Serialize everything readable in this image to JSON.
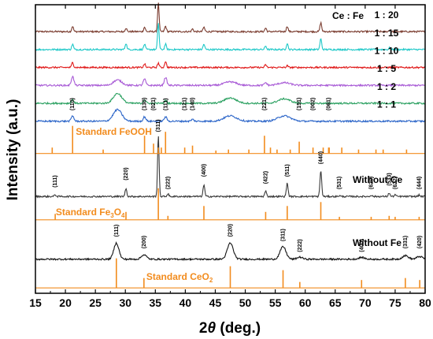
{
  "chart_data": {
    "type": "line",
    "xlabel_italic": "2",
    "xlabel_theta": "θ",
    "xlabel_rest": " (deg.)",
    "ylabel": "Intensity (a.u.)",
    "xlim": [
      15,
      80
    ],
    "x_ticks": [
      "15",
      "20",
      "25",
      "30",
      "35",
      "40",
      "45",
      "50",
      "55",
      "60",
      "65",
      "70",
      "75",
      "80"
    ],
    "legend_title": "Ce : Fe",
    "reference_color": "#f28c1e",
    "series": [
      {
        "name": "1 : 20",
        "color": "#7a3b2e",
        "base": 14.3,
        "amp": 0.85,
        "peaks": [
          [
            21.2,
            0.3,
            0.2
          ],
          [
            30.1,
            0.2,
            0.2
          ],
          [
            33.2,
            0.25,
            0.2
          ],
          [
            35.5,
            1.6,
            0.18
          ],
          [
            36.7,
            0.3,
            0.2
          ],
          [
            41.2,
            0.15,
            0.2
          ],
          [
            43.1,
            0.25,
            0.2
          ],
          [
            53.4,
            0.2,
            0.2
          ],
          [
            57.0,
            0.3,
            0.2
          ],
          [
            62.6,
            0.5,
            0.2
          ],
          [
            74.1,
            0.1,
            0.2
          ]
        ],
        "broad": []
      },
      {
        "name": "1 : 15",
        "color": "#1ec8c8",
        "base": 13.3,
        "amp": 0.85,
        "peaks": [
          [
            21.2,
            0.3,
            0.2
          ],
          [
            30.1,
            0.35,
            0.2
          ],
          [
            33.2,
            0.3,
            0.2
          ],
          [
            35.5,
            1.5,
            0.18
          ],
          [
            36.7,
            0.3,
            0.2
          ],
          [
            43.1,
            0.3,
            0.2
          ],
          [
            53.4,
            0.2,
            0.2
          ],
          [
            57.0,
            0.35,
            0.2
          ],
          [
            62.6,
            0.6,
            0.2
          ],
          [
            74.1,
            0.1,
            0.2
          ]
        ],
        "broad": []
      },
      {
        "name": "1 : 10",
        "color": "#e01818",
        "base": 12.3,
        "amp": 0.85,
        "peaks": [
          [
            21.2,
            0.3,
            0.2
          ],
          [
            33.2,
            0.2,
            0.2
          ],
          [
            35.5,
            0.25,
            0.2
          ],
          [
            36.7,
            0.35,
            0.2
          ],
          [
            53.4,
            0.15,
            0.2
          ],
          [
            57.0,
            0.1,
            0.2
          ]
        ],
        "broad": []
      },
      {
        "name": "1 : 5",
        "color": "#a85ad6",
        "base": 11.3,
        "amp": 0.85,
        "peaks": [
          [
            21.2,
            0.5,
            0.3
          ],
          [
            33.2,
            0.35,
            0.3
          ],
          [
            36.7,
            0.45,
            0.3
          ],
          [
            53.4,
            0.15,
            0.3
          ]
        ],
        "broad": [
          [
            28.7,
            0.3,
            1.0
          ],
          [
            47.5,
            0.2,
            1.4
          ],
          [
            56.5,
            0.15,
            1.4
          ]
        ]
      },
      {
        "name": "1 : 2",
        "color": "#2aa060",
        "base": 10.3,
        "amp": 0.85,
        "peaks": [
          [
            21.2,
            0.2,
            0.3
          ],
          [
            33.2,
            0.2,
            0.3
          ],
          [
            36.7,
            0.15,
            0.3
          ]
        ],
        "broad": [
          [
            28.7,
            0.55,
            1.0
          ],
          [
            47.5,
            0.3,
            1.4
          ],
          [
            56.5,
            0.25,
            1.4
          ]
        ]
      },
      {
        "name": "1 : 1",
        "color": "#2a64c8",
        "base": 9.3,
        "amp": 0.85,
        "peaks": [
          [
            21.2,
            0.3,
            0.3
          ],
          [
            33.2,
            0.25,
            0.3
          ],
          [
            36.7,
            0.25,
            0.3
          ],
          [
            41.2,
            0.1,
            0.3
          ]
        ],
        "broad": [
          [
            28.7,
            0.65,
            1.0
          ],
          [
            47.5,
            0.3,
            1.5
          ],
          [
            56.5,
            0.3,
            1.5
          ]
        ]
      },
      {
        "name": "Without Ce",
        "color": "#3a3a3a",
        "base": 5.1,
        "amp": 0.85,
        "peaks": [
          [
            18.3,
            0.1,
            0.2
          ],
          [
            30.1,
            0.45,
            0.2
          ],
          [
            35.5,
            3.4,
            0.18
          ],
          [
            37.1,
            0.15,
            0.2
          ],
          [
            43.1,
            0.65,
            0.2
          ],
          [
            53.4,
            0.3,
            0.2
          ],
          [
            57.0,
            0.75,
            0.2
          ],
          [
            62.6,
            1.45,
            0.2
          ],
          [
            65.7,
            0.05,
            0.2
          ],
          [
            71.0,
            0.08,
            0.2
          ],
          [
            74.0,
            0.2,
            0.2
          ],
          [
            75.0,
            0.1,
            0.2
          ],
          [
            79.0,
            0.08,
            0.2
          ]
        ],
        "broad": []
      },
      {
        "name": "Without Fe",
        "color": "#111111",
        "base": 1.6,
        "amp": 0.85,
        "peaks": [],
        "broad": [
          [
            28.5,
            0.9,
            0.6
          ],
          [
            33.1,
            0.25,
            0.6
          ],
          [
            47.5,
            0.9,
            0.7
          ],
          [
            56.3,
            0.7,
            0.7
          ],
          [
            59.1,
            0.12,
            0.6
          ],
          [
            69.4,
            0.1,
            0.7
          ],
          [
            76.7,
            0.2,
            0.7
          ],
          [
            79.1,
            0.15,
            0.7
          ]
        ]
      }
    ],
    "references": [
      {
        "name_main": "Standard FeOOH",
        "name_sub": "",
        "name_tail": "",
        "base": 7.5,
        "lines": [
          [
            17.8,
            0.3
          ],
          [
            21.2,
            1.4
          ],
          [
            26.3,
            0.2
          ],
          [
            33.2,
            0.9
          ],
          [
            34.7,
            0.5
          ],
          [
            35.5,
            0.3
          ],
          [
            36.0,
            0.3
          ],
          [
            36.7,
            1.1
          ],
          [
            39.9,
            0.3
          ],
          [
            41.2,
            0.4
          ],
          [
            45.1,
            0.15
          ],
          [
            47.2,
            0.2
          ],
          [
            50.6,
            0.2
          ],
          [
            53.2,
            0.9
          ],
          [
            54.2,
            0.3
          ],
          [
            55.3,
            0.2
          ],
          [
            57.5,
            0.2
          ],
          [
            59.0,
            0.6
          ],
          [
            61.3,
            0.3
          ],
          [
            63.0,
            0.3
          ],
          [
            63.9,
            0.3
          ],
          [
            64.0,
            0.3
          ],
          [
            66.1,
            0.3
          ],
          [
            68.9,
            0.2
          ],
          [
            71.8,
            0.2
          ],
          [
            73.0,
            0.2
          ],
          [
            76.9,
            0.2
          ]
        ]
      },
      {
        "name_main": "Standard Fe",
        "name_sub": "3",
        "name_tail": "O",
        "name_sub2": "4",
        "base": 3.8,
        "lines": [
          [
            18.3,
            0.3
          ],
          [
            30.1,
            0.4
          ],
          [
            35.5,
            1.6
          ],
          [
            37.1,
            0.2
          ],
          [
            43.1,
            0.7
          ],
          [
            53.4,
            0.4
          ],
          [
            57.0,
            0.7
          ],
          [
            62.6,
            0.9
          ],
          [
            65.7,
            0.15
          ],
          [
            71.0,
            0.15
          ],
          [
            74.0,
            0.2
          ],
          [
            75.0,
            0.15
          ],
          [
            79.0,
            0.15
          ]
        ]
      },
      {
        "name_main": "Standard CeO",
        "name_sub": "2",
        "name_tail": "",
        "base": 0.0,
        "lines": [
          [
            28.5,
            1.5
          ],
          [
            33.1,
            0.5
          ],
          [
            47.5,
            1.1
          ],
          [
            56.3,
            0.9
          ],
          [
            59.1,
            0.3
          ],
          [
            69.4,
            0.4
          ],
          [
            76.7,
            0.5
          ],
          [
            79.1,
            0.4
          ]
        ]
      }
    ],
    "hkl_labels": [
      {
        "group": "FeOOH",
        "items": [
          [
            "(110)",
            21.2,
            9.9
          ],
          [
            "(130)",
            33.2,
            9.9
          ],
          [
            "(021)",
            34.7,
            9.9
          ],
          [
            "(111)",
            36.7,
            9.9
          ],
          [
            "(121)",
            39.9,
            9.9
          ],
          [
            "(140)",
            41.2,
            9.9
          ],
          [
            "(221)",
            53.2,
            9.9
          ],
          [
            "(151)",
            59.0,
            9.9
          ],
          [
            "(002)",
            61.3,
            9.9
          ],
          [
            "(061)",
            63.9,
            9.9
          ]
        ]
      },
      {
        "group": "Fe3O4",
        "items": [
          [
            "(111)",
            18.3,
            5.6
          ],
          [
            "(220)",
            30.1,
            6.0
          ],
          [
            "(311)",
            35.5,
            8.7
          ],
          [
            "(222)",
            37.1,
            5.5
          ],
          [
            "(400)",
            43.1,
            6.2
          ],
          [
            "(422)",
            53.4,
            5.8
          ],
          [
            "(511)",
            57.0,
            6.2
          ],
          [
            "(440)",
            62.6,
            6.9
          ],
          [
            "(531)",
            65.7,
            5.5
          ],
          [
            "(620)",
            71.0,
            5.5
          ],
          [
            "(533)",
            74.0,
            5.7
          ],
          [
            "(622)",
            75.0,
            5.5
          ],
          [
            "(444)",
            79.0,
            5.5
          ]
        ]
      },
      {
        "group": "CeO2",
        "items": [
          [
            "(111)",
            28.5,
            2.85
          ],
          [
            "(200)",
            33.1,
            2.2
          ],
          [
            "(220)",
            47.5,
            2.85
          ],
          [
            "(311)",
            56.3,
            2.6
          ],
          [
            "(222)",
            59.1,
            2.0
          ],
          [
            "(400)",
            69.4,
            2.0
          ],
          [
            "(331)",
            76.7,
            2.2
          ],
          [
            "(420)",
            79.1,
            2.2
          ]
        ]
      }
    ],
    "ylim": [
      -0.3,
      15.8
    ]
  }
}
